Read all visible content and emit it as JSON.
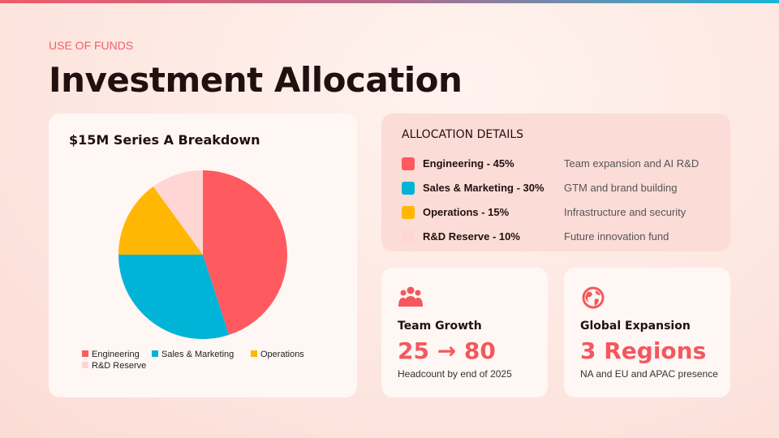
{
  "header": {
    "eyebrow": "USE OF FUNDS",
    "title": "Investment Allocation"
  },
  "chart_data": {
    "type": "pie",
    "title": "$15M Series A Breakdown",
    "categories": [
      "Engineering",
      "Sales & Marketing",
      "Operations",
      "R&D Reserve"
    ],
    "values": [
      45,
      30,
      15,
      10
    ],
    "colors": [
      "#ff5a5f",
      "#00b4d8",
      "#ffb703",
      "#ffd6d4"
    ]
  },
  "details": {
    "heading": "ALLOCATION DETAILS",
    "items": [
      {
        "label": "Engineering - 45%",
        "description": "Team expansion and AI R&D"
      },
      {
        "label": "Sales & Marketing - 30%",
        "description": "GTM and brand building"
      },
      {
        "label": "Operations - 15%",
        "description": "Infrastructure and security"
      },
      {
        "label": "R&D Reserve - 10%",
        "description": "Future innovation fund"
      }
    ]
  },
  "cards": [
    {
      "title": "Team Growth",
      "metric": "25 → 80",
      "description": "Headcount by end of 2025"
    },
    {
      "title": "Global Expansion",
      "metric": "3 Regions",
      "description": "NA and EU and APAC presence"
    }
  ]
}
